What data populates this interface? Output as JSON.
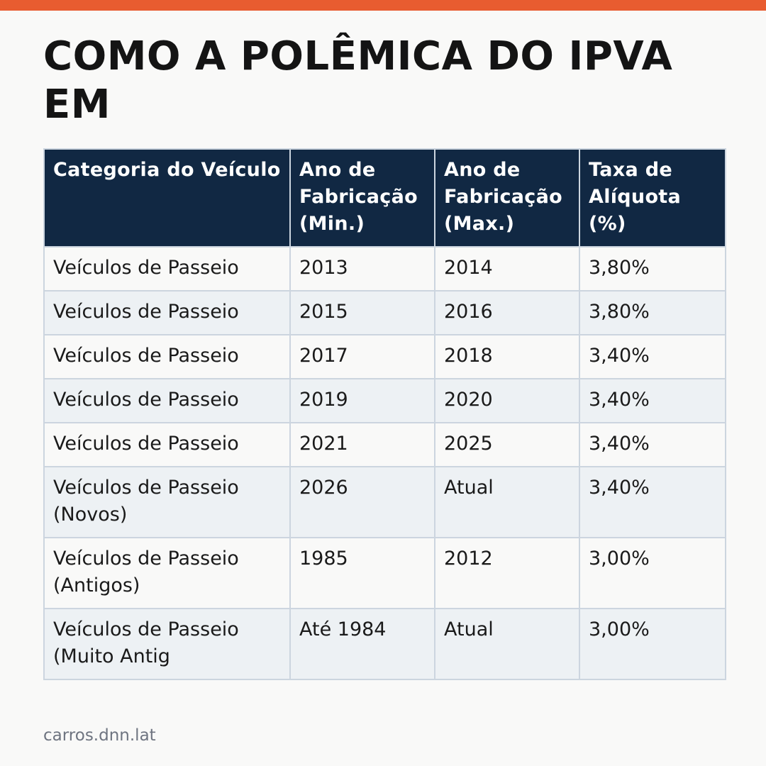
{
  "title": "COMO A POLÊMICA DO IPVA EM",
  "colors": {
    "accent_bar": "#e85c30",
    "header_background": "#112843",
    "row_alt_background": "#edf1f4"
  },
  "table": {
    "headers": [
      "Categoria do Veículo",
      "Ano de Fabricação (Min.)",
      "Ano de Fabricação (Max.)",
      "Taxa de Alíquota (%)"
    ],
    "rows": [
      [
        "Veículos de Passeio",
        "2013",
        "2014",
        "3,80%"
      ],
      [
        "Veículos de Passeio",
        "2015",
        "2016",
        "3,80%"
      ],
      [
        "Veículos de Passeio",
        "2017",
        "2018",
        "3,40%"
      ],
      [
        "Veículos de Passeio",
        "2019",
        "2020",
        "3,40%"
      ],
      [
        "Veículos de Passeio",
        "2021",
        "2025",
        "3,40%"
      ],
      [
        "Veículos de Passeio (Novos)",
        "2026",
        "Atual",
        "3,40%"
      ],
      [
        "Veículos de Passeio (Antigos)",
        "1985",
        "2012",
        "3,00%"
      ],
      [
        "Veículos de Passeio (Muito Antig",
        "Até 1984",
        "Atual",
        "3,00%"
      ]
    ]
  },
  "footer": {
    "site": "carros.dnn.lat"
  }
}
